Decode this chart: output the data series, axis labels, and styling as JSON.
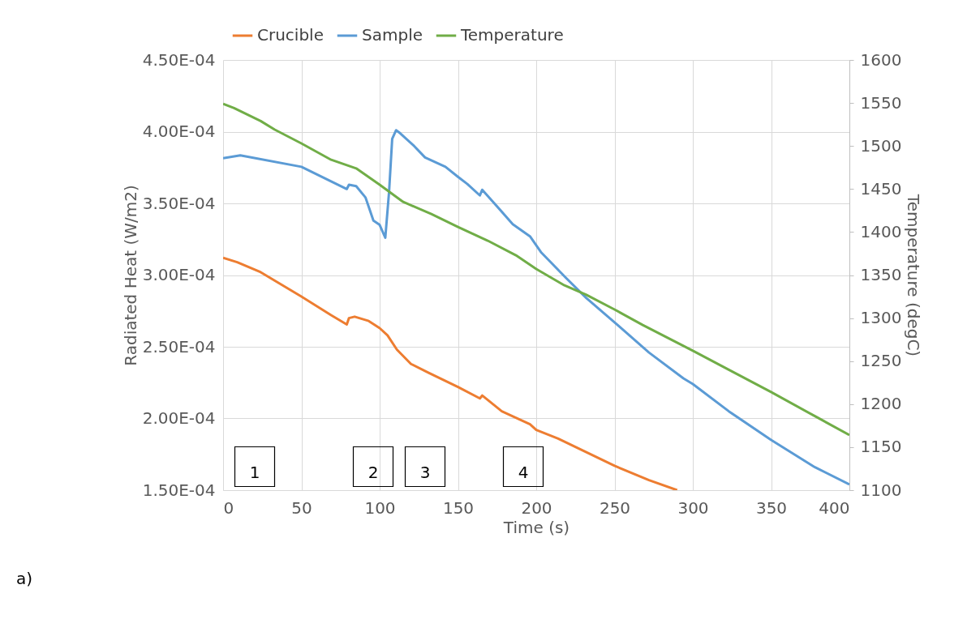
{
  "chart_data": {
    "type": "line",
    "xlabel": "Time (s)",
    "ylabel": "Radiated Heat (W/m2)",
    "y2label": "Temperature (degC)",
    "xlim": [
      0,
      400
    ],
    "xticks": [
      0,
      50,
      100,
      150,
      200,
      250,
      300,
      350,
      400
    ],
    "ylim": [
      0.00015,
      0.00045
    ],
    "yticks": [
      {
        "value": 0.00015,
        "label": "1.50E-04"
      },
      {
        "value": 0.0002,
        "label": "2.00E-04"
      },
      {
        "value": 0.00025,
        "label": "2.50E-04"
      },
      {
        "value": 0.0003,
        "label": "3.00E-04"
      },
      {
        "value": 0.00035,
        "label": "3.50E-04"
      },
      {
        "value": 0.0004,
        "label": "4.00E-04"
      },
      {
        "value": 0.00045,
        "label": "4.50E-04"
      }
    ],
    "y2lim": [
      1100,
      1600
    ],
    "y2ticks": [
      1100,
      1150,
      1200,
      1250,
      1300,
      1350,
      1400,
      1450,
      1500,
      1550,
      1600
    ],
    "grid": true,
    "legend": "top",
    "marker": "none",
    "line_style": "solid",
    "series": [
      {
        "name": "Crucible",
        "color": "#ed7d31",
        "x": [
          0,
          9,
          24,
          50,
          69,
          79,
          80.4,
          84,
          93,
          100,
          105,
          111,
          120,
          131,
          150,
          164,
          165.5,
          178,
          196,
          200,
          214,
          250,
          272,
          290
        ],
        "values": [
          0.000312,
          0.000309,
          0.000302,
          0.000285,
          0.000272,
          0.0002655,
          0.00027,
          0.000271,
          0.000268,
          0.000263,
          0.000258,
          0.000248,
          0.000238,
          0.000232,
          0.000222,
          0.000214,
          0.000216,
          0.000205,
          0.000196,
          0.000192,
          0.000186,
          0.000167,
          0.000157,
          0.00015
        ]
      },
      {
        "name": "Sample",
        "color": "#5b9bd5",
        "x": [
          0,
          11,
          50,
          79,
          80.4,
          85,
          91,
          96,
          100,
          103.6,
          106,
          108,
          110.5,
          113,
          122,
          129,
          142,
          150,
          156,
          164,
          165.5,
          174.5,
          185,
          196,
          203,
          219,
          232,
          250,
          272,
          294,
          300,
          323,
          350,
          378,
          400
        ],
        "values": [
          0.0003815,
          0.0003835,
          0.0003755,
          0.00036,
          0.000363,
          0.000362,
          0.000354,
          0.000338,
          0.000335,
          0.000326,
          0.000358,
          0.000395,
          0.000401,
          0.000399,
          0.00039,
          0.000382,
          0.0003755,
          0.0003685,
          0.0003635,
          0.0003555,
          0.0003595,
          0.0003485,
          0.0003355,
          0.000327,
          0.000316,
          0.000298,
          0.000284,
          0.000267,
          0.000246,
          0.000228,
          0.000224,
          0.000205,
          0.000185,
          0.000166,
          0.000154
        ]
      },
      {
        "name": "Temperature",
        "color": "#70ad47",
        "axis": "y2",
        "x": [
          0,
          7,
          24,
          33,
          50,
          69,
          85,
          100,
          115,
          133,
          150,
          169,
          187,
          200,
          218,
          232,
          250,
          268,
          300,
          323,
          350,
          378,
          400
        ],
        "values": [
          1549,
          1544,
          1529,
          1519,
          1503,
          1484,
          1474,
          1455,
          1435,
          1421,
          1406,
          1390,
          1373,
          1357,
          1338,
          1327,
          1310,
          1292,
          1262,
          1240,
          1214,
          1186,
          1164
        ]
      }
    ],
    "annotations": [
      "1",
      "2",
      "3",
      "4",
      "a)"
    ]
  }
}
